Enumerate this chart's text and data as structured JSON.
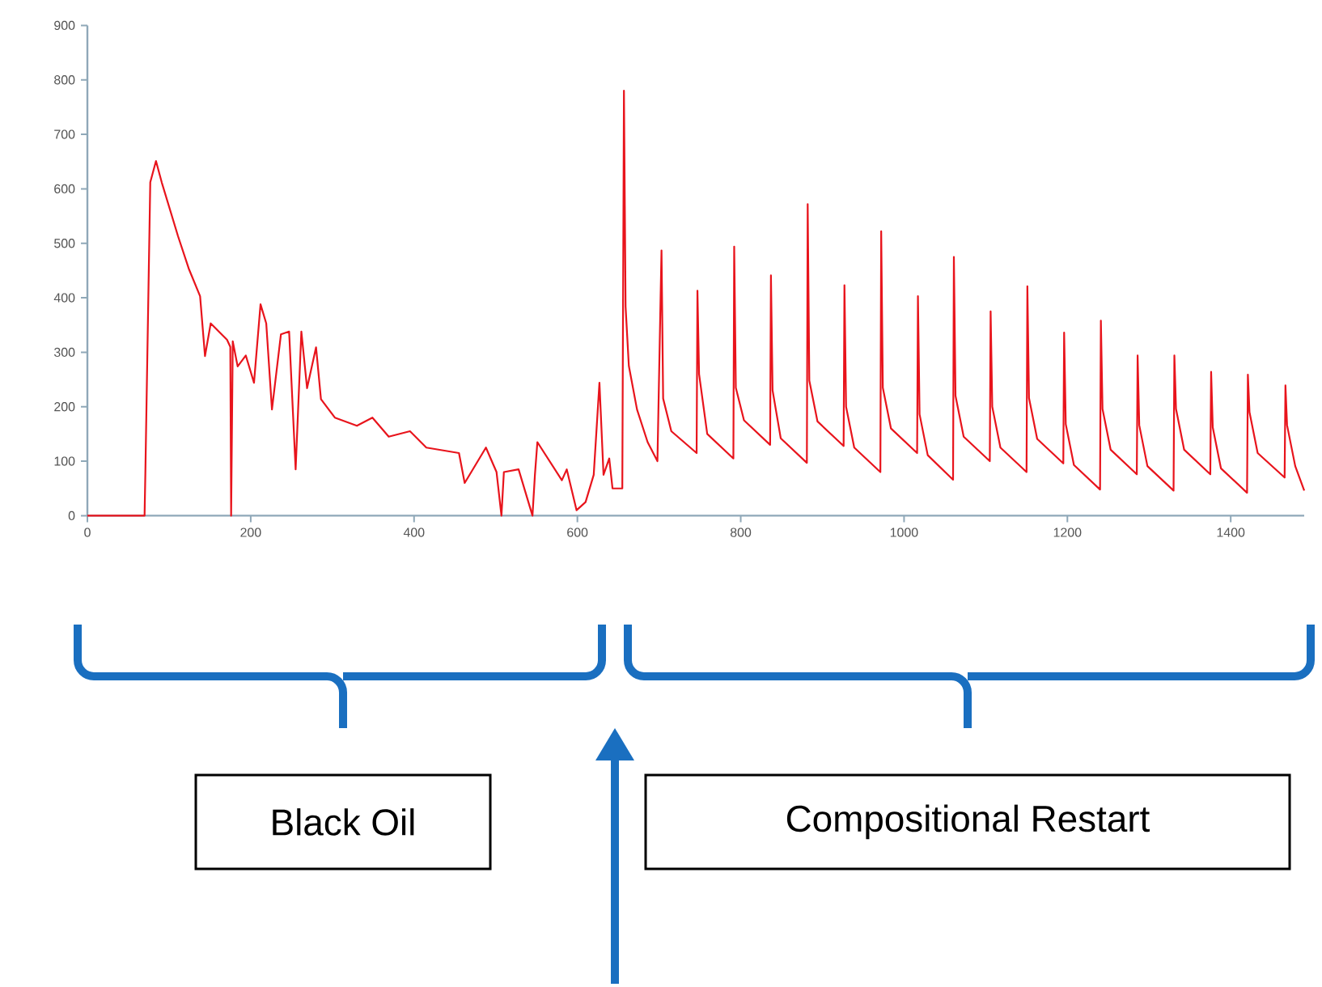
{
  "chart_data": {
    "type": "line",
    "x": [
      0,
      70,
      71,
      77,
      84,
      91,
      111,
      124,
      138,
      144,
      151,
      171,
      175,
      176,
      178,
      184,
      194,
      204,
      212,
      219,
      226,
      237,
      247,
      255,
      262,
      269,
      280,
      286,
      303,
      330,
      349,
      369,
      395,
      415,
      455,
      462,
      488,
      501,
      507,
      510,
      528,
      545,
      548,
      551,
      581,
      587,
      599,
      610,
      620,
      627,
      632,
      639,
      643,
      655,
      657,
      659,
      663,
      673,
      686,
      698,
      703,
      705,
      715,
      746,
      747,
      749,
      759,
      791,
      792,
      794,
      804,
      836,
      837,
      839,
      849,
      881,
      882,
      884,
      894,
      926,
      927,
      929,
      939,
      971,
      972,
      974,
      984,
      1016,
      1017,
      1019,
      1029,
      1060,
      1061,
      1063,
      1073,
      1105,
      1106,
      1108,
      1118,
      1150,
      1151,
      1153,
      1163,
      1195,
      1196,
      1198,
      1208,
      1240,
      1241,
      1243,
      1253,
      1285,
      1286,
      1288,
      1298,
      1330,
      1331,
      1333,
      1343,
      1375,
      1376,
      1378,
      1388,
      1420,
      1421,
      1423,
      1433,
      1466,
      1467,
      1469,
      1479,
      1490
    ],
    "series": [
      {
        "color": "#e8141c",
        "values": [
          0,
          0,
          80,
          612,
          651,
          612,
          513,
          454,
          403,
          293,
          353,
          323,
          310,
          0,
          320,
          274,
          294,
          244,
          388,
          353,
          195,
          333,
          338,
          85,
          338,
          234,
          309,
          214,
          180,
          165,
          180,
          145,
          155,
          125,
          115,
          60,
          125,
          80,
          0,
          80,
          85,
          0,
          75,
          135,
          65,
          85,
          10,
          25,
          75,
          244,
          75,
          105,
          50,
          50,
          780,
          384,
          275,
          195,
          135,
          100,
          487,
          215,
          155,
          115,
          413,
          260,
          150,
          105,
          494,
          235,
          175,
          130,
          441,
          230,
          142,
          97,
          572,
          248,
          173,
          128,
          423,
          200,
          125,
          80,
          522,
          235,
          160,
          115,
          403,
          186,
          111,
          66,
          475,
          220,
          145,
          100,
          375,
          200,
          125,
          80,
          421,
          216,
          141,
          96,
          336,
          168,
          93,
          48,
          358,
          196,
          121,
          76,
          294,
          166,
          91,
          46,
          294,
          196,
          121,
          76,
          264,
          162,
          87,
          42,
          259,
          190,
          115,
          70,
          239,
          166,
          91,
          46
        ]
      }
    ],
    "xlim": [
      0,
      1490
    ],
    "ylim": [
      0,
      900
    ],
    "xticks": [
      0,
      200,
      400,
      600,
      800,
      1000,
      1200,
      1400
    ],
    "yticks": [
      0,
      100,
      200,
      300,
      400,
      500,
      600,
      700,
      800,
      900
    ],
    "annotations": [
      "Black Oil",
      "Compositional Restart"
    ]
  }
}
